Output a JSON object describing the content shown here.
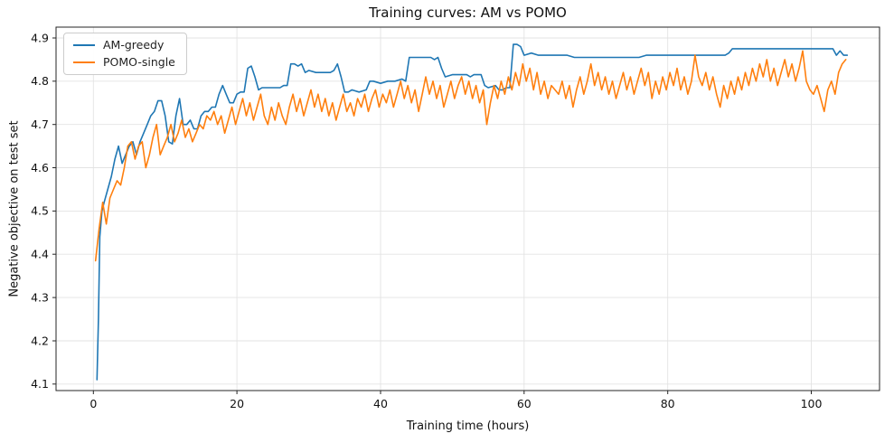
{
  "title": "Training curves: AM vs POMO",
  "chart_data": {
    "type": "line",
    "title": "Training curves: AM vs POMO",
    "xlabel": "Training time (hours)",
    "ylabel": "Negative objective on test set",
    "xlim": [
      -5.2,
      109.5
    ],
    "ylim": [
      4.085,
      4.925
    ],
    "xticks": [
      0,
      20,
      40,
      60,
      80,
      100
    ],
    "yticks": [
      4.1,
      4.2,
      4.3,
      4.4,
      4.5,
      4.6,
      4.7,
      4.8,
      4.9
    ],
    "grid": true,
    "legend_position": "upper left",
    "series": [
      {
        "name": "AM-greedy",
        "color": "#1f77b4",
        "x": [
          0.5,
          0.7,
          0.9,
          1.2,
          1.5,
          2,
          2.5,
          3,
          3.5,
          4,
          4.5,
          5,
          5.5,
          6,
          6.5,
          7,
          7.5,
          8,
          8.5,
          9,
          9.5,
          10,
          10.5,
          11,
          11.5,
          12,
          12.5,
          13,
          13.5,
          14,
          14.5,
          15,
          15.5,
          16,
          16.5,
          17,
          17.5,
          18,
          18.5,
          19,
          19.5,
          20,
          20.5,
          21,
          21.5,
          22,
          22.5,
          23,
          23.5,
          24,
          25,
          26,
          26.5,
          27,
          27.5,
          28,
          28.5,
          29,
          29.5,
          30,
          31,
          32,
          33,
          33.5,
          34,
          34.5,
          35,
          35.5,
          36,
          37,
          38,
          38.5,
          39,
          40,
          41,
          42,
          43,
          43.5,
          44,
          45,
          46,
          47,
          47.5,
          48,
          48.5,
          49,
          50,
          51,
          52,
          52.5,
          53,
          54,
          54.5,
          55,
          56,
          56.5,
          57,
          57.5,
          58,
          58.5,
          59,
          59.5,
          60,
          61,
          62,
          63,
          64,
          65,
          66,
          67,
          68,
          70,
          72,
          74,
          76,
          77,
          78,
          80,
          82,
          84,
          86,
          88,
          88.5,
          89,
          90,
          92,
          94,
          96,
          98,
          100,
          102,
          103,
          103.5,
          104,
          104.5,
          105
        ],
        "y": [
          4.11,
          4.25,
          4.44,
          4.5,
          4.52,
          4.55,
          4.58,
          4.62,
          4.65,
          4.61,
          4.63,
          4.65,
          4.66,
          4.63,
          4.66,
          4.68,
          4.7,
          4.72,
          4.73,
          4.755,
          4.755,
          4.72,
          4.66,
          4.655,
          4.72,
          4.76,
          4.7,
          4.7,
          4.71,
          4.69,
          4.69,
          4.72,
          4.73,
          4.73,
          4.74,
          4.74,
          4.77,
          4.79,
          4.77,
          4.75,
          4.75,
          4.77,
          4.775,
          4.775,
          4.83,
          4.835,
          4.81,
          4.78,
          4.785,
          4.785,
          4.785,
          4.785,
          4.79,
          4.79,
          4.84,
          4.84,
          4.835,
          4.84,
          4.82,
          4.825,
          4.82,
          4.82,
          4.82,
          4.825,
          4.84,
          4.81,
          4.775,
          4.775,
          4.78,
          4.775,
          4.78,
          4.8,
          4.8,
          4.795,
          4.8,
          4.8,
          4.805,
          4.8,
          4.855,
          4.855,
          4.855,
          4.855,
          4.85,
          4.855,
          4.83,
          4.81,
          4.815,
          4.815,
          4.815,
          4.81,
          4.815,
          4.815,
          4.79,
          4.785,
          4.79,
          4.78,
          4.78,
          4.785,
          4.785,
          4.885,
          4.885,
          4.88,
          4.86,
          4.865,
          4.86,
          4.86,
          4.86,
          4.86,
          4.86,
          4.855,
          4.855,
          4.855,
          4.855,
          4.855,
          4.855,
          4.86,
          4.86,
          4.86,
          4.86,
          4.86,
          4.86,
          4.86,
          4.865,
          4.875,
          4.875,
          4.875,
          4.875,
          4.875,
          4.875,
          4.875,
          4.875,
          4.875,
          4.86,
          4.87,
          4.86,
          4.86
        ]
      },
      {
        "name": "POMO-single",
        "color": "#ff7f0e",
        "x_start": 0.3,
        "x_step": 0.5,
        "y": [
          4.385,
          4.46,
          4.52,
          4.47,
          4.53,
          4.55,
          4.57,
          4.56,
          4.6,
          4.65,
          4.66,
          4.62,
          4.65,
          4.66,
          4.6,
          4.63,
          4.67,
          4.7,
          4.63,
          4.65,
          4.67,
          4.7,
          4.66,
          4.68,
          4.71,
          4.67,
          4.69,
          4.66,
          4.68,
          4.7,
          4.69,
          4.72,
          4.71,
          4.73,
          4.7,
          4.72,
          4.68,
          4.71,
          4.74,
          4.7,
          4.73,
          4.76,
          4.72,
          4.75,
          4.71,
          4.74,
          4.77,
          4.72,
          4.7,
          4.74,
          4.71,
          4.75,
          4.72,
          4.7,
          4.74,
          4.77,
          4.73,
          4.76,
          4.72,
          4.75,
          4.78,
          4.74,
          4.77,
          4.73,
          4.76,
          4.72,
          4.75,
          4.71,
          4.74,
          4.77,
          4.73,
          4.75,
          4.72,
          4.76,
          4.74,
          4.77,
          4.73,
          4.76,
          4.78,
          4.74,
          4.77,
          4.75,
          4.78,
          4.74,
          4.77,
          4.8,
          4.76,
          4.79,
          4.75,
          4.78,
          4.73,
          4.77,
          4.81,
          4.77,
          4.8,
          4.76,
          4.79,
          4.74,
          4.77,
          4.8,
          4.76,
          4.79,
          4.81,
          4.77,
          4.8,
          4.76,
          4.79,
          4.75,
          4.78,
          4.7,
          4.75,
          4.79,
          4.76,
          4.8,
          4.77,
          4.81,
          4.78,
          4.82,
          4.79,
          4.84,
          4.8,
          4.83,
          4.78,
          4.82,
          4.77,
          4.8,
          4.76,
          4.79,
          4.78,
          4.77,
          4.8,
          4.76,
          4.79,
          4.74,
          4.78,
          4.81,
          4.77,
          4.8,
          4.84,
          4.79,
          4.82,
          4.78,
          4.81,
          4.77,
          4.8,
          4.76,
          4.79,
          4.82,
          4.78,
          4.81,
          4.77,
          4.8,
          4.83,
          4.79,
          4.82,
          4.76,
          4.8,
          4.77,
          4.81,
          4.78,
          4.82,
          4.79,
          4.83,
          4.78,
          4.81,
          4.77,
          4.8,
          4.86,
          4.81,
          4.79,
          4.82,
          4.78,
          4.81,
          4.77,
          4.74,
          4.79,
          4.76,
          4.8,
          4.77,
          4.81,
          4.78,
          4.82,
          4.79,
          4.83,
          4.8,
          4.84,
          4.81,
          4.85,
          4.8,
          4.83,
          4.79,
          4.82,
          4.85,
          4.81,
          4.84,
          4.8,
          4.83,
          4.87,
          4.8,
          4.78,
          4.77,
          4.79,
          4.76,
          4.73,
          4.78,
          4.8,
          4.77,
          4.82,
          4.84,
          4.85
        ]
      }
    ]
  },
  "colors": {
    "am_greedy": "#1f77b4",
    "pomo_single": "#ff7f0e",
    "grid": "#e3e3e3",
    "spine": "#262626",
    "text": "#111111"
  }
}
